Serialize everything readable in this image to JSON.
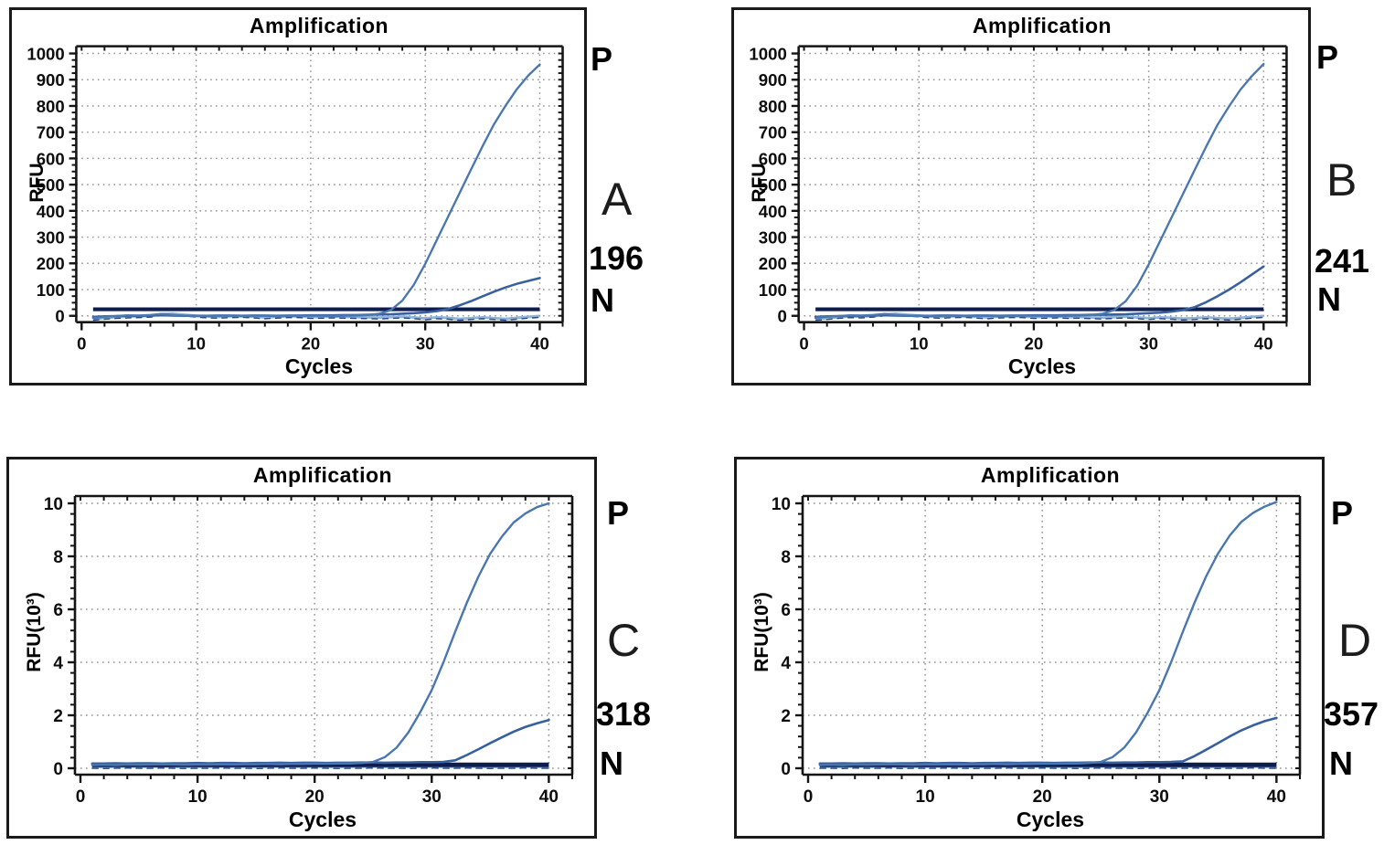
{
  "figure": {
    "background": "#ffffff",
    "grid_color": "#929292",
    "axis_color": "#141414",
    "tick_label_color": "#0d0d0d"
  },
  "chart_data": [
    {
      "type": "line",
      "id": "A",
      "title": "Amplification",
      "x_label": "Cycles",
      "y_label": "RFU",
      "x_range": [
        0,
        42
      ],
      "x_ticks": [
        0,
        10,
        20,
        30,
        40
      ],
      "x_minor_step": 2,
      "y_range": [
        -40,
        1020
      ],
      "y_ticks": [
        0,
        100,
        200,
        300,
        400,
        500,
        600,
        700,
        800,
        900,
        1000
      ],
      "y_minor_step": 25,
      "legend_position": "none",
      "grid": true,
      "side_labels": {
        "positive": "P",
        "letter": "A",
        "sample_id": "196",
        "negative": "N"
      },
      "threshold": {
        "y": 25,
        "color": "#0e1c50",
        "width": 4.2
      },
      "series": [
        {
          "name": "negative-control",
          "label": "N",
          "color": "#8fb4d9",
          "overlay_color": "#2c4a88",
          "width": 3,
          "x_start": 1,
          "values": [
            -12,
            -8,
            -5,
            -3,
            -2,
            0,
            6,
            8,
            4,
            0,
            -3,
            -4,
            -2,
            -1,
            -3,
            -6,
            -4,
            -2,
            -2,
            -5,
            -4,
            -3,
            -4,
            -5,
            -6,
            -7,
            -5,
            -3,
            -6,
            -10,
            -6,
            -8,
            -12,
            -9,
            -6,
            -9,
            -12,
            -8,
            -4,
            -1
          ]
        },
        {
          "name": "sample",
          "label": "196",
          "color": "#38609f",
          "width": 2.6,
          "x_start": 1,
          "values": [
            -4,
            -2,
            -1,
            0,
            0,
            1,
            2,
            1,
            0,
            0,
            0,
            1,
            1,
            0,
            1,
            1,
            0,
            1,
            1,
            2,
            2,
            2,
            3,
            3,
            4,
            5,
            6,
            8,
            10,
            13,
            18,
            26,
            40,
            56,
            74,
            92,
            108,
            122,
            133,
            144
          ]
        },
        {
          "name": "positive-control",
          "label": "P",
          "color": "#4a77b0",
          "width": 2.4,
          "x_start": 1,
          "values": [
            -8,
            -4,
            -1,
            2,
            1,
            3,
            7,
            3,
            0,
            -1,
            0,
            1,
            0,
            -1,
            1,
            0,
            -1,
            0,
            1,
            0,
            0,
            -1,
            0,
            1,
            3,
            8,
            22,
            58,
            118,
            198,
            288,
            378,
            468,
            558,
            646,
            730,
            800,
            864,
            916,
            958
          ]
        }
      ]
    },
    {
      "type": "line",
      "id": "B",
      "title": "Amplification",
      "x_label": "Cycles",
      "y_label": "RFU",
      "x_range": [
        0,
        42
      ],
      "x_ticks": [
        0,
        10,
        20,
        30,
        40
      ],
      "x_minor_step": 2,
      "y_range": [
        -40,
        1020
      ],
      "y_ticks": [
        0,
        100,
        200,
        300,
        400,
        500,
        600,
        700,
        800,
        900,
        1000
      ],
      "y_minor_step": 25,
      "legend_position": "none",
      "grid": true,
      "side_labels": {
        "positive": "P",
        "letter": "B",
        "sample_id": "241",
        "negative": "N"
      },
      "threshold": {
        "y": 25,
        "color": "#0e1c50",
        "width": 4.2
      },
      "series": [
        {
          "name": "negative-control",
          "label": "N",
          "color": "#8fb4d9",
          "overlay_color": "#2c4a88",
          "width": 3,
          "x_start": 1,
          "values": [
            -12,
            -9,
            -5,
            -2,
            -3,
            0,
            5,
            8,
            4,
            1,
            -3,
            -4,
            -2,
            -1,
            -4,
            -6,
            -3,
            -2,
            -2,
            -5,
            -4,
            -3,
            -5,
            -4,
            -6,
            -7,
            -5,
            -3,
            -6,
            -9,
            -6,
            -8,
            -11,
            -9,
            -6,
            -9,
            -11,
            -8,
            -4,
            -1
          ]
        },
        {
          "name": "sample",
          "label": "241",
          "color": "#38609f",
          "width": 2.6,
          "x_start": 1,
          "values": [
            -4,
            -2,
            -1,
            0,
            0,
            1,
            2,
            1,
            0,
            0,
            0,
            1,
            1,
            0,
            1,
            1,
            0,
            1,
            1,
            2,
            2,
            2,
            3,
            3,
            4,
            4,
            5,
            6,
            8,
            10,
            12,
            16,
            22,
            33,
            52,
            75,
            100,
            128,
            158,
            188
          ]
        },
        {
          "name": "positive-control",
          "label": "P",
          "color": "#4a77b0",
          "width": 2.4,
          "x_start": 1,
          "values": [
            -8,
            -4,
            -1,
            2,
            1,
            3,
            7,
            3,
            0,
            -1,
            0,
            1,
            0,
            -1,
            1,
            0,
            -1,
            0,
            1,
            0,
            0,
            -1,
            0,
            1,
            3,
            8,
            22,
            56,
            115,
            196,
            286,
            376,
            466,
            556,
            645,
            729,
            799,
            863,
            915,
            960
          ]
        }
      ]
    },
    {
      "type": "line",
      "id": "C",
      "title": "Amplification",
      "x_label": "Cycles",
      "y_label": "RFU(10³)",
      "x_range": [
        0,
        42
      ],
      "x_ticks": [
        0,
        10,
        20,
        30,
        40
      ],
      "x_minor_step": 2,
      "y_range": [
        -0.4,
        10.4
      ],
      "y_ticks": [
        0,
        2,
        4,
        6,
        8,
        10
      ],
      "y_minor_step": 0.4,
      "legend_position": "none",
      "grid": true,
      "side_labels": {
        "positive": "P",
        "letter": "C",
        "sample_id": "318",
        "negative": "N"
      },
      "threshold": {
        "y": 0.13,
        "color": "#0e1c50",
        "width": 5
      },
      "series": [
        {
          "name": "negative-control",
          "label": "N",
          "color": "#8fb4d9",
          "overlay_color": "#2c4a88",
          "width": 2.6,
          "x_start": 1,
          "values": [
            0.05,
            0.04,
            0.05,
            0.06,
            0.05,
            0.05,
            0.06,
            0.05,
            0.04,
            0.05,
            0.05,
            0.06,
            0.05,
            0.05,
            0.04,
            0.05,
            0.06,
            0.05,
            0.05,
            0.06,
            0.05,
            0.04,
            0.05,
            0.05,
            0.06,
            0.05,
            0.05,
            0.04,
            0.05,
            0.06,
            0.05,
            0.05,
            0.06,
            0.05,
            0.04,
            0.05,
            0.05,
            0.06,
            0.05,
            0.05
          ]
        },
        {
          "name": "sample",
          "label": "318",
          "color": "#38609f",
          "width": 2.6,
          "x_start": 1,
          "values": [
            0.18,
            0.18,
            0.19,
            0.18,
            0.19,
            0.19,
            0.18,
            0.19,
            0.19,
            0.2,
            0.19,
            0.2,
            0.2,
            0.19,
            0.2,
            0.2,
            0.21,
            0.2,
            0.21,
            0.21,
            0.2,
            0.21,
            0.21,
            0.22,
            0.22,
            0.21,
            0.22,
            0.22,
            0.23,
            0.23,
            0.24,
            0.3,
            0.5,
            0.72,
            0.95,
            1.17,
            1.38,
            1.56,
            1.7,
            1.82
          ]
        },
        {
          "name": "positive-control",
          "label": "P",
          "color": "#4a77b0",
          "width": 2.4,
          "x_start": 1,
          "values": [
            0.12,
            0.13,
            0.12,
            0.14,
            0.13,
            0.14,
            0.15,
            0.14,
            0.13,
            0.14,
            0.14,
            0.15,
            0.14,
            0.15,
            0.15,
            0.16,
            0.15,
            0.16,
            0.16,
            0.17,
            0.17,
            0.18,
            0.18,
            0.2,
            0.24,
            0.42,
            0.78,
            1.35,
            2.1,
            2.95,
            4.0,
            5.15,
            6.25,
            7.25,
            8.1,
            8.75,
            9.28,
            9.62,
            9.86,
            10.0
          ]
        }
      ]
    },
    {
      "type": "line",
      "id": "D",
      "title": "Amplification",
      "x_label": "Cycles",
      "y_label": "RFU(10³)",
      "x_range": [
        0,
        42
      ],
      "x_ticks": [
        0,
        10,
        20,
        30,
        40
      ],
      "x_minor_step": 2,
      "y_range": [
        -0.4,
        10.4
      ],
      "y_ticks": [
        0,
        2,
        4,
        6,
        8,
        10
      ],
      "y_minor_step": 0.4,
      "legend_position": "none",
      "grid": true,
      "side_labels": {
        "positive": "P",
        "letter": "D",
        "sample_id": "357",
        "negative": "N"
      },
      "threshold": {
        "y": 0.13,
        "color": "#0e1c50",
        "width": 5
      },
      "series": [
        {
          "name": "negative-control",
          "label": "N",
          "color": "#8fb4d9",
          "overlay_color": "#2c4a88",
          "width": 2.6,
          "x_start": 1,
          "values": [
            0.05,
            0.05,
            0.04,
            0.06,
            0.05,
            0.05,
            0.06,
            0.04,
            0.05,
            0.05,
            0.05,
            0.06,
            0.05,
            0.04,
            0.05,
            0.05,
            0.06,
            0.05,
            0.05,
            0.06,
            0.05,
            0.05,
            0.04,
            0.05,
            0.06,
            0.05,
            0.05,
            0.04,
            0.05,
            0.06,
            0.05,
            0.05,
            0.06,
            0.05,
            0.04,
            0.05,
            0.05,
            0.06,
            0.05,
            0.05
          ]
        },
        {
          "name": "sample",
          "label": "357",
          "color": "#38609f",
          "width": 2.6,
          "x_start": 1,
          "values": [
            0.18,
            0.18,
            0.19,
            0.18,
            0.19,
            0.19,
            0.18,
            0.19,
            0.19,
            0.2,
            0.19,
            0.2,
            0.2,
            0.19,
            0.2,
            0.2,
            0.21,
            0.2,
            0.21,
            0.21,
            0.2,
            0.21,
            0.21,
            0.22,
            0.22,
            0.21,
            0.22,
            0.22,
            0.23,
            0.23,
            0.24,
            0.26,
            0.46,
            0.7,
            0.95,
            1.2,
            1.43,
            1.62,
            1.78,
            1.9
          ]
        },
        {
          "name": "positive-control",
          "label": "P",
          "color": "#4a77b0",
          "width": 2.4,
          "x_start": 1,
          "values": [
            0.12,
            0.13,
            0.12,
            0.14,
            0.13,
            0.14,
            0.15,
            0.14,
            0.13,
            0.14,
            0.14,
            0.15,
            0.14,
            0.15,
            0.15,
            0.16,
            0.15,
            0.16,
            0.16,
            0.17,
            0.17,
            0.18,
            0.18,
            0.2,
            0.24,
            0.42,
            0.78,
            1.35,
            2.1,
            2.95,
            4.0,
            5.15,
            6.25,
            7.25,
            8.1,
            8.78,
            9.3,
            9.64,
            9.88,
            10.05
          ]
        }
      ]
    }
  ]
}
